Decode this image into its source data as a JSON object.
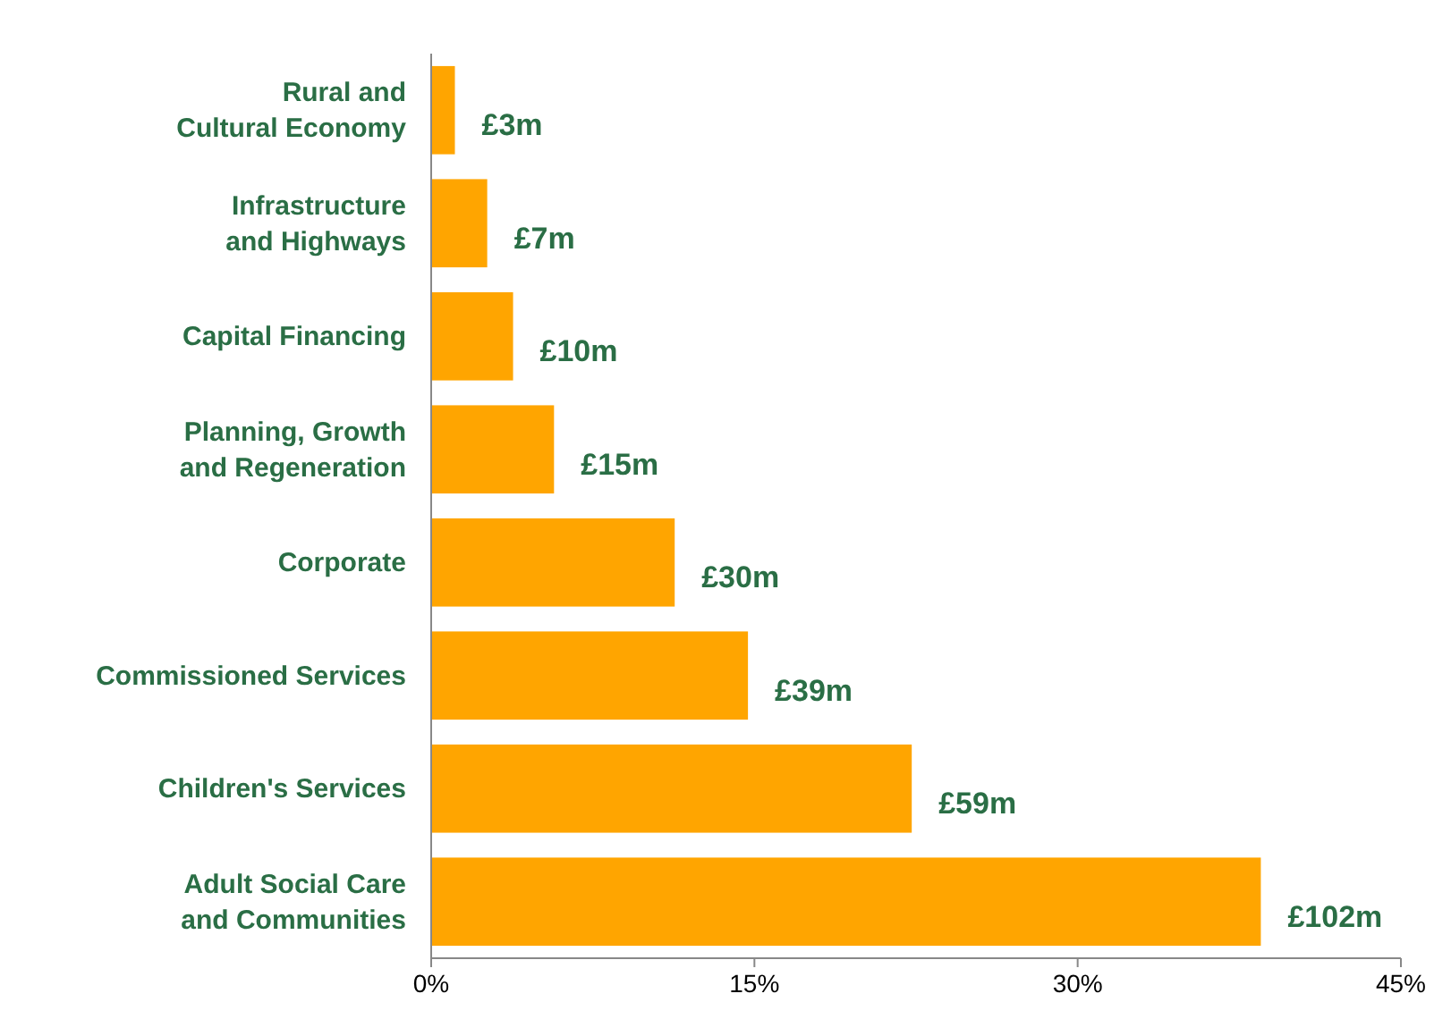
{
  "chart_data": {
    "type": "bar",
    "orientation": "horizontal",
    "categories": [
      "Rural and Cultural Economy",
      "Infrastructure and Highways",
      "Capital Financing",
      "Planning, Growth and Regeneration",
      "Corporate",
      "Commissioned Services",
      "Children's Services",
      "Adult Social Care and Communities"
    ],
    "values": [
      1.1,
      2.6,
      3.8,
      5.7,
      11.3,
      14.7,
      22.3,
      38.5
    ],
    "annotations": [
      "£3m",
      "£7m",
      "£10m",
      "£15m",
      "£30m",
      "£39m",
      "£59m",
      "£102m"
    ],
    "color": "#ffa500",
    "xlim": [
      0,
      45
    ],
    "xticks": [
      {
        "value": 0,
        "label": "0%"
      },
      {
        "value": 15,
        "label": "15%"
      },
      {
        "value": 30,
        "label": "30%"
      },
      {
        "value": 45,
        "label": "45%"
      }
    ],
    "grid": false
  }
}
